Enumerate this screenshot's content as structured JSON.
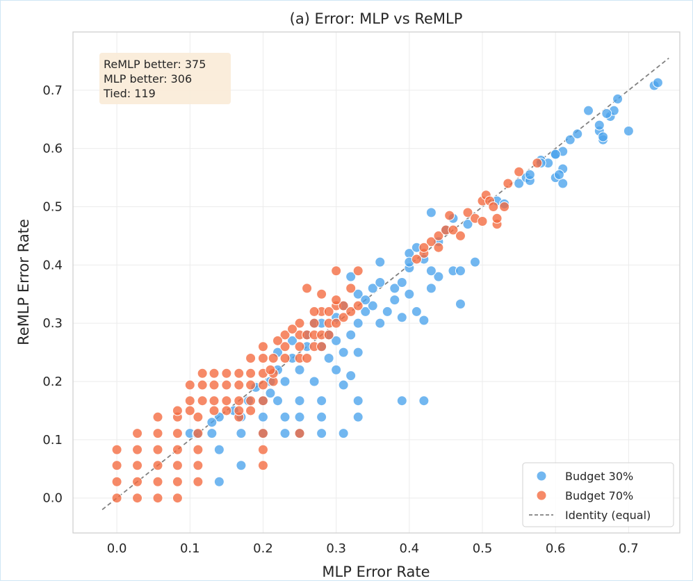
{
  "chart_data": {
    "type": "scatter",
    "title": "(a) Error: MLP vs ReMLP",
    "xlabel": "MLP Error Rate",
    "ylabel": "ReMLP Error Rate",
    "xlim": [
      -0.06,
      0.77
    ],
    "ylim": [
      -0.06,
      0.8
    ],
    "xticks": [
      0.0,
      0.1,
      0.2,
      0.3,
      0.4,
      0.5,
      0.6,
      0.7
    ],
    "yticks": [
      0.0,
      0.1,
      0.2,
      0.3,
      0.4,
      0.5,
      0.6,
      0.7
    ],
    "xtick_labels": [
      "0.0",
      "0.1",
      "0.2",
      "0.3",
      "0.4",
      "0.5",
      "0.6",
      "0.7"
    ],
    "ytick_labels": [
      "0.0",
      "0.1",
      "0.2",
      "0.3",
      "0.4",
      "0.5",
      "0.6",
      "0.7"
    ],
    "grid": true,
    "annotation": {
      "lines": [
        "ReMLP better: 375",
        "MLP better: 306",
        "Tied: 119"
      ],
      "position": "top-left"
    },
    "identity_line": {
      "label": "Identity (equal)",
      "from": [
        -0.02,
        -0.02
      ],
      "to": [
        0.755,
        0.755
      ],
      "color": "#808080"
    },
    "legend_position": "bottom-right",
    "series": [
      {
        "name": "Budget 30%",
        "color": "#4aa3ec",
        "points": [
          [
            0.14,
            0.028
          ],
          [
            0.17,
            0.056
          ],
          [
            0.14,
            0.083
          ],
          [
            0.1,
            0.111
          ],
          [
            0.13,
            0.111
          ],
          [
            0.17,
            0.111
          ],
          [
            0.2,
            0.111
          ],
          [
            0.23,
            0.111
          ],
          [
            0.25,
            0.111
          ],
          [
            0.28,
            0.111
          ],
          [
            0.31,
            0.111
          ],
          [
            0.23,
            0.139
          ],
          [
            0.25,
            0.139
          ],
          [
            0.28,
            0.139
          ],
          [
            0.33,
            0.139
          ],
          [
            0.2,
            0.139
          ],
          [
            0.17,
            0.139
          ],
          [
            0.14,
            0.139
          ],
          [
            0.13,
            0.13
          ],
          [
            0.11,
            0.11
          ],
          [
            0.22,
            0.167
          ],
          [
            0.25,
            0.167
          ],
          [
            0.28,
            0.167
          ],
          [
            0.33,
            0.167
          ],
          [
            0.39,
            0.167
          ],
          [
            0.42,
            0.167
          ],
          [
            0.2,
            0.167
          ],
          [
            0.18,
            0.167
          ],
          [
            0.16,
            0.15
          ],
          [
            0.21,
            0.18
          ],
          [
            0.27,
            0.2
          ],
          [
            0.31,
            0.194
          ],
          [
            0.32,
            0.21
          ],
          [
            0.23,
            0.2
          ],
          [
            0.19,
            0.19
          ],
          [
            0.25,
            0.22
          ],
          [
            0.3,
            0.22
          ],
          [
            0.29,
            0.24
          ],
          [
            0.33,
            0.25
          ],
          [
            0.28,
            0.26
          ],
          [
            0.26,
            0.26
          ],
          [
            0.3,
            0.27
          ],
          [
            0.31,
            0.25
          ],
          [
            0.22,
            0.25
          ],
          [
            0.24,
            0.24
          ],
          [
            0.29,
            0.28
          ],
          [
            0.32,
            0.28
          ],
          [
            0.27,
            0.3
          ],
          [
            0.3,
            0.31
          ],
          [
            0.33,
            0.3
          ],
          [
            0.31,
            0.33
          ],
          [
            0.34,
            0.32
          ],
          [
            0.35,
            0.33
          ],
          [
            0.33,
            0.35
          ],
          [
            0.36,
            0.3
          ],
          [
            0.37,
            0.32
          ],
          [
            0.35,
            0.36
          ],
          [
            0.36,
            0.37
          ],
          [
            0.38,
            0.36
          ],
          [
            0.38,
            0.34
          ],
          [
            0.39,
            0.37
          ],
          [
            0.4,
            0.35
          ],
          [
            0.39,
            0.31
          ],
          [
            0.41,
            0.32
          ],
          [
            0.42,
            0.305
          ],
          [
            0.43,
            0.36
          ],
          [
            0.44,
            0.38
          ],
          [
            0.43,
            0.39
          ],
          [
            0.46,
            0.39
          ],
          [
            0.47,
            0.39
          ],
          [
            0.49,
            0.405
          ],
          [
            0.47,
            0.333
          ],
          [
            0.4,
            0.42
          ],
          [
            0.41,
            0.43
          ],
          [
            0.42,
            0.41
          ],
          [
            0.44,
            0.44
          ],
          [
            0.45,
            0.46
          ],
          [
            0.43,
            0.49
          ],
          [
            0.46,
            0.48
          ],
          [
            0.48,
            0.47
          ],
          [
            0.36,
            0.405
          ],
          [
            0.32,
            0.38
          ],
          [
            0.4,
            0.395
          ],
          [
            0.4,
            0.405
          ],
          [
            0.28,
            0.3
          ],
          [
            0.26,
            0.28
          ],
          [
            0.24,
            0.27
          ],
          [
            0.22,
            0.22
          ],
          [
            0.21,
            0.2
          ],
          [
            0.34,
            0.34
          ],
          [
            0.52,
            0.51
          ],
          [
            0.53,
            0.505
          ],
          [
            0.55,
            0.54
          ],
          [
            0.56,
            0.55
          ],
          [
            0.565,
            0.545
          ],
          [
            0.58,
            0.58
          ],
          [
            0.59,
            0.575
          ],
          [
            0.6,
            0.59
          ],
          [
            0.6,
            0.55
          ],
          [
            0.61,
            0.565
          ],
          [
            0.61,
            0.54
          ],
          [
            0.605,
            0.555
          ],
          [
            0.61,
            0.595
          ],
          [
            0.62,
            0.615
          ],
          [
            0.63,
            0.625
          ],
          [
            0.645,
            0.665
          ],
          [
            0.66,
            0.63
          ],
          [
            0.66,
            0.64
          ],
          [
            0.665,
            0.615
          ],
          [
            0.665,
            0.62
          ],
          [
            0.675,
            0.655
          ],
          [
            0.68,
            0.665
          ],
          [
            0.685,
            0.685
          ],
          [
            0.7,
            0.63
          ],
          [
            0.735,
            0.708
          ],
          [
            0.74,
            0.713
          ],
          [
            0.565,
            0.555
          ],
          [
            0.6,
            0.59
          ],
          [
            0.67,
            0.66
          ],
          [
            0.58,
            0.575
          ]
        ]
      },
      {
        "name": "Budget 70%",
        "color": "#f4693e",
        "points": [
          [
            0.0,
            0.0
          ],
          [
            0.0,
            0.028
          ],
          [
            0.0,
            0.056
          ],
          [
            0.0,
            0.083
          ],
          [
            0.028,
            0.0
          ],
          [
            0.028,
            0.028
          ],
          [
            0.028,
            0.056
          ],
          [
            0.028,
            0.083
          ],
          [
            0.028,
            0.111
          ],
          [
            0.056,
            0.0
          ],
          [
            0.056,
            0.028
          ],
          [
            0.056,
            0.056
          ],
          [
            0.056,
            0.083
          ],
          [
            0.056,
            0.111
          ],
          [
            0.056,
            0.139
          ],
          [
            0.083,
            0.0
          ],
          [
            0.083,
            0.028
          ],
          [
            0.083,
            0.056
          ],
          [
            0.083,
            0.083
          ],
          [
            0.083,
            0.111
          ],
          [
            0.083,
            0.139
          ],
          [
            0.083,
            0.15
          ],
          [
            0.111,
            0.028
          ],
          [
            0.111,
            0.056
          ],
          [
            0.111,
            0.083
          ],
          [
            0.111,
            0.111
          ],
          [
            0.111,
            0.139
          ],
          [
            0.1,
            0.15
          ],
          [
            0.1,
            0.167
          ],
          [
            0.1,
            0.194
          ],
          [
            0.117,
            0.167
          ],
          [
            0.117,
            0.194
          ],
          [
            0.117,
            0.214
          ],
          [
            0.133,
            0.15
          ],
          [
            0.133,
            0.167
          ],
          [
            0.133,
            0.194
          ],
          [
            0.133,
            0.214
          ],
          [
            0.15,
            0.15
          ],
          [
            0.15,
            0.167
          ],
          [
            0.15,
            0.194
          ],
          [
            0.15,
            0.214
          ],
          [
            0.167,
            0.139
          ],
          [
            0.167,
            0.15
          ],
          [
            0.167,
            0.167
          ],
          [
            0.167,
            0.194
          ],
          [
            0.167,
            0.214
          ],
          [
            0.183,
            0.15
          ],
          [
            0.183,
            0.167
          ],
          [
            0.183,
            0.194
          ],
          [
            0.183,
            0.214
          ],
          [
            0.183,
            0.24
          ],
          [
            0.2,
            0.056
          ],
          [
            0.2,
            0.083
          ],
          [
            0.2,
            0.111
          ],
          [
            0.2,
            0.167
          ],
          [
            0.2,
            0.194
          ],
          [
            0.2,
            0.214
          ],
          [
            0.2,
            0.24
          ],
          [
            0.2,
            0.26
          ],
          [
            0.214,
            0.2
          ],
          [
            0.214,
            0.214
          ],
          [
            0.214,
            0.24
          ],
          [
            0.23,
            0.24
          ],
          [
            0.23,
            0.26
          ],
          [
            0.23,
            0.28
          ],
          [
            0.25,
            0.24
          ],
          [
            0.25,
            0.26
          ],
          [
            0.25,
            0.28
          ],
          [
            0.25,
            0.3
          ],
          [
            0.25,
            0.111
          ],
          [
            0.26,
            0.24
          ],
          [
            0.26,
            0.28
          ],
          [
            0.27,
            0.26
          ],
          [
            0.27,
            0.28
          ],
          [
            0.27,
            0.3
          ],
          [
            0.28,
            0.26
          ],
          [
            0.28,
            0.28
          ],
          [
            0.28,
            0.32
          ],
          [
            0.28,
            0.35
          ],
          [
            0.29,
            0.28
          ],
          [
            0.29,
            0.3
          ],
          [
            0.3,
            0.3
          ],
          [
            0.3,
            0.33
          ],
          [
            0.3,
            0.39
          ],
          [
            0.31,
            0.31
          ],
          [
            0.31,
            0.33
          ],
          [
            0.32,
            0.32
          ],
          [
            0.32,
            0.36
          ],
          [
            0.33,
            0.33
          ],
          [
            0.33,
            0.39
          ],
          [
            0.26,
            0.36
          ],
          [
            0.3,
            0.34
          ],
          [
            0.24,
            0.29
          ],
          [
            0.22,
            0.27
          ],
          [
            0.27,
            0.32
          ],
          [
            0.29,
            0.32
          ],
          [
            0.42,
            0.42
          ],
          [
            0.43,
            0.44
          ],
          [
            0.44,
            0.45
          ],
          [
            0.42,
            0.43
          ],
          [
            0.44,
            0.43
          ],
          [
            0.45,
            0.46
          ],
          [
            0.455,
            0.485
          ],
          [
            0.46,
            0.46
          ],
          [
            0.47,
            0.45
          ],
          [
            0.48,
            0.49
          ],
          [
            0.49,
            0.48
          ],
          [
            0.5,
            0.475
          ],
          [
            0.5,
            0.51
          ],
          [
            0.505,
            0.52
          ],
          [
            0.51,
            0.51
          ],
          [
            0.515,
            0.5
          ],
          [
            0.52,
            0.47
          ],
          [
            0.52,
            0.48
          ],
          [
            0.53,
            0.5
          ],
          [
            0.535,
            0.54
          ],
          [
            0.55,
            0.56
          ],
          [
            0.575,
            0.575
          ],
          [
            0.41,
            0.41
          ],
          [
            0.21,
            0.22
          ]
        ]
      }
    ]
  }
}
